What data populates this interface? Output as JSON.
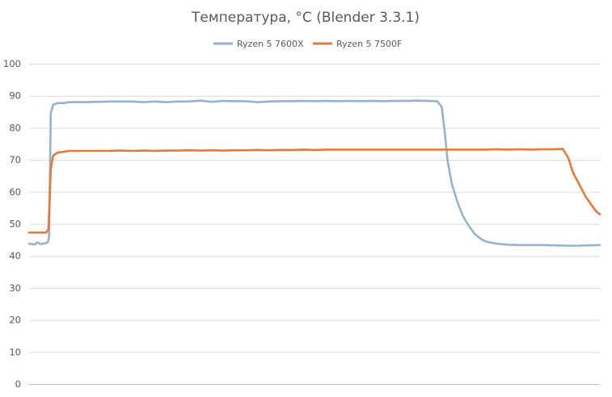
{
  "chart_data": {
    "type": "line",
    "title": "Температура, °C (Blender 3.3.1)",
    "xlabel": "",
    "ylabel": "",
    "ylim": [
      0,
      100
    ],
    "yticks": [
      0,
      10,
      20,
      30,
      40,
      50,
      60,
      70,
      80,
      90,
      100
    ],
    "ytick_labels": [
      "0",
      "10",
      "20",
      "30",
      "40",
      "50",
      "60",
      "70",
      "80",
      "90",
      "100"
    ],
    "xlim": [
      0,
      100
    ],
    "grid": true,
    "legend_position": "top",
    "colors": {
      "Ryzen 5 7600X": "#95b3cc",
      "Ryzen 5 7500F": "#e07b3c"
    },
    "series": [
      {
        "name": "Ryzen 5 7600X",
        "color": "#95b3cc",
        "points": [
          [
            0,
            43.8
          ],
          [
            1,
            43.6
          ],
          [
            1.5,
            44.2
          ],
          [
            2,
            43.7
          ],
          [
            2.8,
            43.9
          ],
          [
            3.3,
            44.3
          ],
          [
            3.5,
            46
          ],
          [
            3.8,
            84.5
          ],
          [
            4.2,
            87.2
          ],
          [
            5,
            87.7
          ],
          [
            6,
            87.7
          ],
          [
            7,
            88.0
          ],
          [
            8,
            88.0
          ],
          [
            10,
            88.0
          ],
          [
            12,
            88.1
          ],
          [
            14,
            88.2
          ],
          [
            16,
            88.2
          ],
          [
            18,
            88.2
          ],
          [
            20,
            88.0
          ],
          [
            22,
            88.2
          ],
          [
            24,
            88.0
          ],
          [
            26,
            88.2
          ],
          [
            28,
            88.2
          ],
          [
            30,
            88.5
          ],
          [
            32,
            88.1
          ],
          [
            34,
            88.4
          ],
          [
            36,
            88.3
          ],
          [
            38,
            88.3
          ],
          [
            40,
            88.0
          ],
          [
            42,
            88.2
          ],
          [
            44,
            88.3
          ],
          [
            46,
            88.3
          ],
          [
            48,
            88.4
          ],
          [
            50,
            88.3
          ],
          [
            52,
            88.4
          ],
          [
            54,
            88.3
          ],
          [
            56,
            88.4
          ],
          [
            58,
            88.3
          ],
          [
            60,
            88.4
          ],
          [
            62,
            88.3
          ],
          [
            64,
            88.4
          ],
          [
            66,
            88.4
          ],
          [
            68,
            88.5
          ],
          [
            70,
            88.4
          ],
          [
            71.5,
            88.3
          ],
          [
            72.3,
            86.5
          ],
          [
            72.8,
            79.0
          ],
          [
            73.3,
            70.0
          ],
          [
            74,
            63.0
          ],
          [
            75,
            57.0
          ],
          [
            76,
            52.5
          ],
          [
            77,
            49.5
          ],
          [
            78,
            47.0
          ],
          [
            79,
            45.5
          ],
          [
            80,
            44.5
          ],
          [
            82,
            43.8
          ],
          [
            84,
            43.5
          ],
          [
            86,
            43.4
          ],
          [
            88,
            43.4
          ],
          [
            90,
            43.4
          ],
          [
            92,
            43.3
          ],
          [
            94,
            43.2
          ],
          [
            96,
            43.2
          ],
          [
            98,
            43.3
          ],
          [
            100,
            43.4
          ]
        ]
      },
      {
        "name": "Ryzen 5 7500F",
        "color": "#e07b3c",
        "points": [
          [
            0,
            47.3
          ],
          [
            1,
            47.3
          ],
          [
            2,
            47.3
          ],
          [
            3,
            47.3
          ],
          [
            3.4,
            48.5
          ],
          [
            3.8,
            67.0
          ],
          [
            4.2,
            71.3
          ],
          [
            5,
            72.3
          ],
          [
            6,
            72.5
          ],
          [
            7,
            72.8
          ],
          [
            8,
            72.8
          ],
          [
            10,
            72.8
          ],
          [
            12,
            72.8
          ],
          [
            14,
            72.8
          ],
          [
            16,
            72.9
          ],
          [
            18,
            72.8
          ],
          [
            20,
            72.9
          ],
          [
            22,
            72.8
          ],
          [
            24,
            72.9
          ],
          [
            26,
            72.9
          ],
          [
            28,
            73.0
          ],
          [
            30,
            72.9
          ],
          [
            32,
            73.0
          ],
          [
            34,
            72.9
          ],
          [
            36,
            73.0
          ],
          [
            38,
            73.0
          ],
          [
            40,
            73.1
          ],
          [
            42,
            73.0
          ],
          [
            44,
            73.1
          ],
          [
            46,
            73.1
          ],
          [
            48,
            73.2
          ],
          [
            50,
            73.1
          ],
          [
            52,
            73.2
          ],
          [
            54,
            73.2
          ],
          [
            56,
            73.2
          ],
          [
            58,
            73.2
          ],
          [
            60,
            73.2
          ],
          [
            62,
            73.2
          ],
          [
            64,
            73.2
          ],
          [
            66,
            73.2
          ],
          [
            68,
            73.2
          ],
          [
            70,
            73.2
          ],
          [
            72,
            73.2
          ],
          [
            74,
            73.2
          ],
          [
            76,
            73.2
          ],
          [
            78,
            73.2
          ],
          [
            80,
            73.2
          ],
          [
            82,
            73.3
          ],
          [
            84,
            73.2
          ],
          [
            86,
            73.3
          ],
          [
            88,
            73.2
          ],
          [
            90,
            73.3
          ],
          [
            92,
            73.3
          ],
          [
            93.5,
            73.4
          ],
          [
            94.5,
            70.5
          ],
          [
            95.3,
            66.0
          ],
          [
            96.5,
            62.0
          ],
          [
            97.5,
            58.5
          ],
          [
            98.5,
            56.0
          ],
          [
            99.3,
            54.0
          ],
          [
            100,
            53.0
          ]
        ]
      }
    ]
  }
}
